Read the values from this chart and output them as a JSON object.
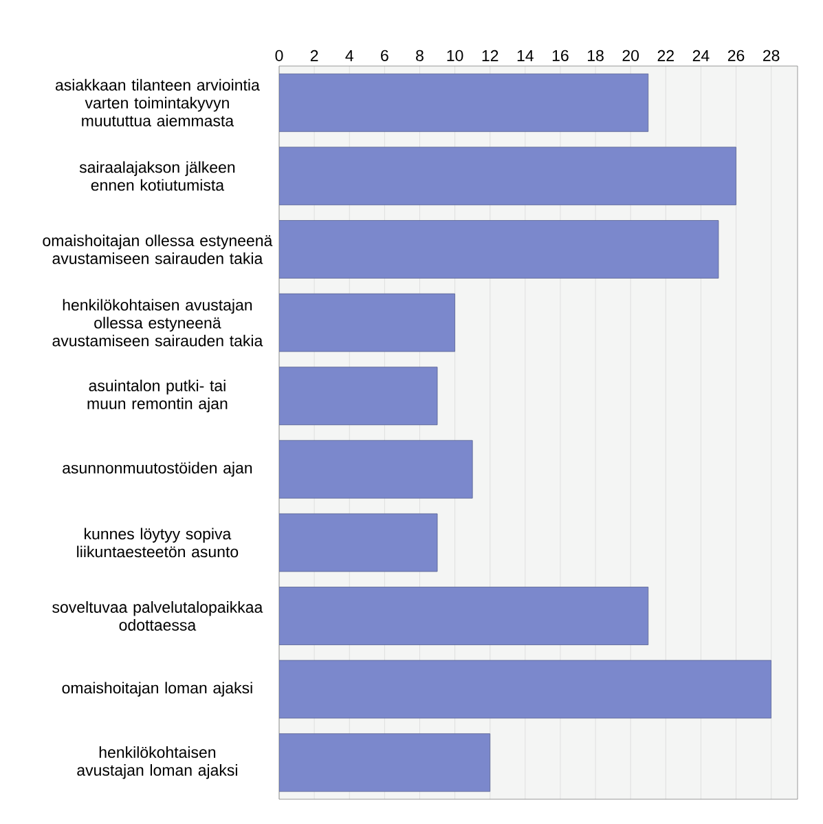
{
  "chart_data": {
    "type": "bar",
    "orientation": "horizontal",
    "categories": [
      "asiakkaan tilanteen arviointia varten toimintakyvyn muututtua aiemmasta",
      "sairaalajakson jälkeen ennen kotiutumista",
      "omaishoitajan ollessa estyneenä avustamiseen sairauden takia",
      "henkilökohtaisen avustajan ollessa estyneenä avustamiseen sairauden takia",
      "asuintalon putki- tai muun remontin ajan",
      "asunnonmuutostöiden ajan",
      "kunnes löytyy sopiva liikuntaesteetön asunto",
      "soveltuvaa palvelutalopaikkaa odottaessa",
      "omaishoitajan loman ajaksi",
      "henkilökohtaisen avustajan loman ajaksi"
    ],
    "values": [
      21,
      26,
      25,
      10,
      9,
      11,
      9,
      21,
      28,
      12
    ],
    "color": "#7b88cc",
    "xlim": [
      0,
      29.5
    ],
    "xticks": [
      0,
      2,
      4,
      6,
      8,
      10,
      12,
      14,
      16,
      18,
      20,
      22,
      24,
      26,
      28
    ],
    "grid": "x"
  }
}
